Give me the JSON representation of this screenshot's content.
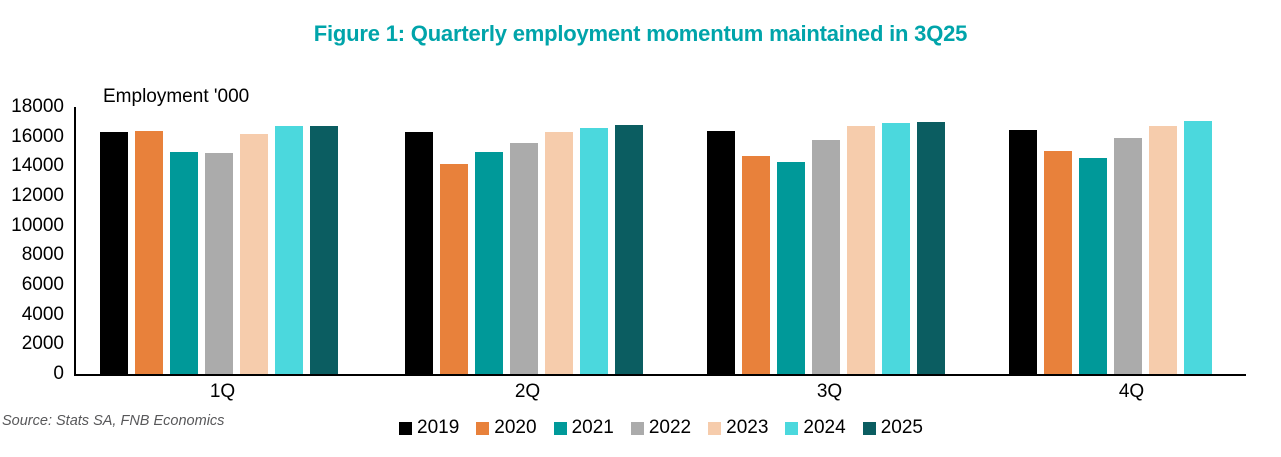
{
  "title": "Figure 1: Quarterly employment momentum maintained in 3Q25",
  "source": "Source: Stats SA, FNB Economics",
  "colors": {
    "accent_title": "#00A4AA",
    "axis": "#000000",
    "source_text": "#58585A"
  },
  "chart_data": {
    "type": "bar",
    "title": "Figure 1: Quarterly employment momentum maintained in 3Q25",
    "ylabel": "Employment '000",
    "xlabel": "",
    "categories": [
      "1Q",
      "2Q",
      "3Q",
      "4Q"
    ],
    "series": [
      {
        "name": "2019",
        "color": "#000000",
        "values": [
          16291,
          16313,
          16375,
          16420
        ]
      },
      {
        "name": "2020",
        "color": "#E8813B",
        "values": [
          16383,
          14148,
          14691,
          15024
        ]
      },
      {
        "name": "2021",
        "color": "#009999",
        "values": [
          14995,
          14942,
          14282,
          14544
        ]
      },
      {
        "name": "2022",
        "color": "#ABABAB",
        "values": [
          14867,
          15562,
          15765,
          15894
        ]
      },
      {
        "name": "2023",
        "color": "#F6CCAC",
        "values": [
          16193,
          16346,
          16745,
          16725
        ]
      },
      {
        "name": "2024",
        "color": "#4BD8DD",
        "values": [
          16703,
          16611,
          16902,
          17034
        ]
      },
      {
        "name": "2025",
        "color": "#0B5D61",
        "values": [
          16743,
          16762,
          17010,
          null
        ]
      }
    ],
    "ylim": [
      0,
      18000
    ],
    "ytick_step": 2000,
    "grid": false,
    "legend_position": "bottom"
  }
}
